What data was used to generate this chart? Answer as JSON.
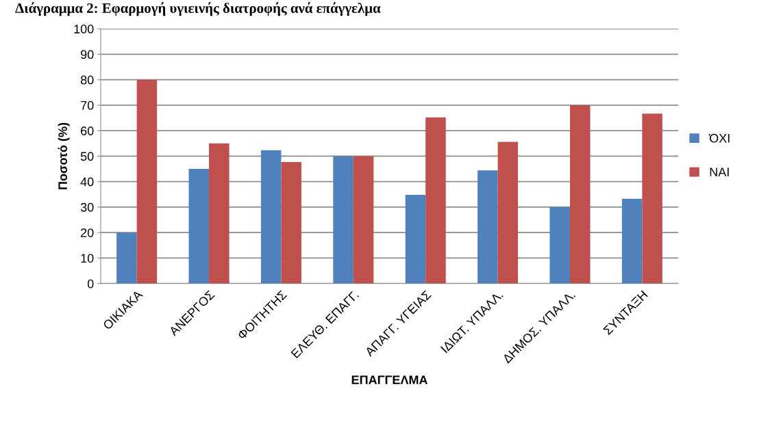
{
  "chart_data": {
    "type": "bar",
    "title": "Διάγραμμα 2: Εφαρμογή υγιεινής διατροφής ανά επάγγελμα",
    "xlabel": "ΕΠΑΓΓΕΛΜΑ",
    "ylabel": "Ποσοτό (%)",
    "categories": [
      "ΟΙΚΙΑΚΑ",
      "ΑΝΕΡΓΟΣ",
      "ΦΟΙΤΗΤΗΣ",
      "ΕΛΕΥΘ. ΕΠΑΓΓ.",
      "ΑΠΑΓΓ. ΥΓΕΙΑΣ",
      "ΙΔΙΩΤ. ΥΠΑΛΛ.",
      "ΔΗΜΟΣ. ΥΠΑΛΛ.",
      "ΣΥΝΤΑΞΗ"
    ],
    "series": [
      {
        "name": "ΌΧΙ",
        "color": "#4f81bd",
        "values": [
          20,
          45,
          52.3,
          50,
          34.8,
          44.4,
          30,
          33.3
        ]
      },
      {
        "name": "ΝΑΙ",
        "color": "#c0504d",
        "values": [
          80,
          55,
          47.7,
          50,
          65.2,
          55.6,
          70,
          66.7
        ]
      }
    ],
    "ylim": [
      0,
      100
    ],
    "yticks": [
      0,
      10,
      20,
      30,
      40,
      50,
      60,
      70,
      80,
      90,
      100
    ],
    "grid": "y",
    "legend": "right"
  }
}
